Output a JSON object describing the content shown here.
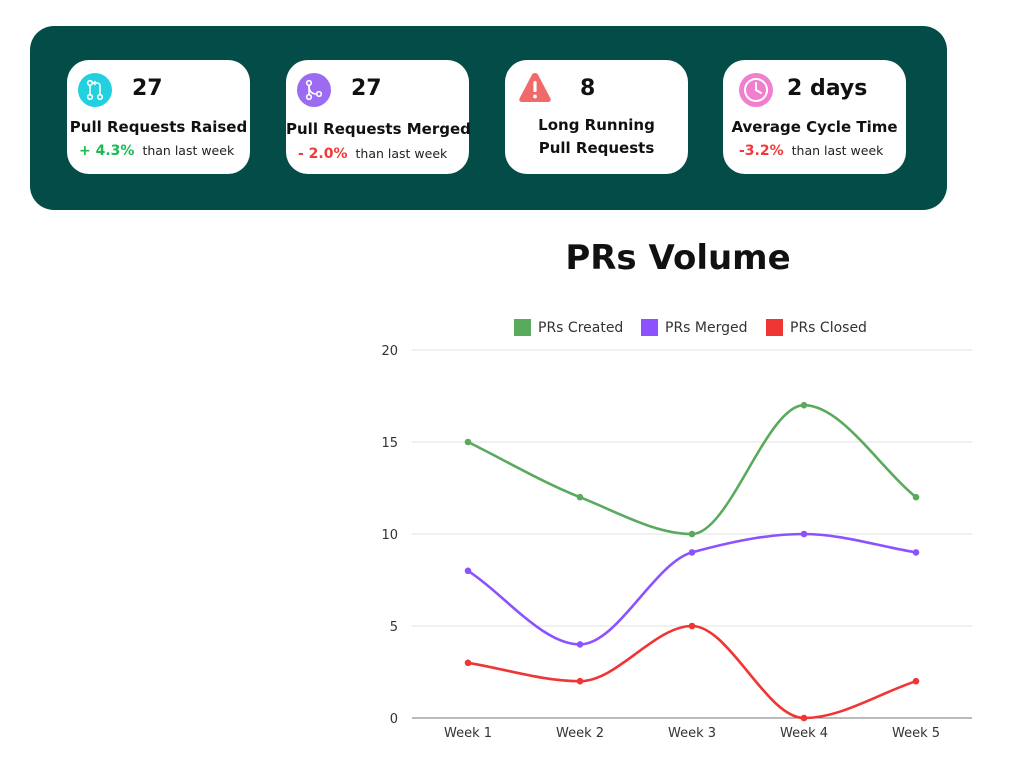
{
  "stats": [
    {
      "value": "27",
      "label": "Pull Requests Raised",
      "change": "+ 4.3%",
      "direction": "up",
      "suffix": "than last week",
      "icon": "pull-request-icon",
      "icon_color": "#22d0df"
    },
    {
      "value": "27",
      "label": "Pull Requests Merged",
      "change": "- 2.0%",
      "direction": "down",
      "suffix": "than last week",
      "icon": "merge-icon",
      "icon_color": "#9b6bf2"
    },
    {
      "value": "8",
      "label_line1": "Long Running",
      "label_line2": "Pull Requests",
      "icon": "warning-icon",
      "icon_color": "#f06a6a"
    },
    {
      "value": "2 days",
      "label": "Average Cycle Time",
      "change": "-3.2%",
      "direction": "down",
      "suffix": "than last week",
      "icon": "clock-icon",
      "icon_color": "#f07fd0"
    }
  ],
  "colors": {
    "panel_bg": "#034c48",
    "up": "#1db954",
    "down": "#f03a3a"
  },
  "chart_data": {
    "type": "line",
    "title": "PRs Volume",
    "categories": [
      "Week 1",
      "Week 2",
      "Week 3",
      "Week 4",
      "Week 5"
    ],
    "series": [
      {
        "name": "PRs Created",
        "color": "#5aaa5e",
        "values": [
          15,
          12,
          10,
          17,
          12
        ]
      },
      {
        "name": "PRs Merged",
        "color": "#8c52ff",
        "values": [
          8,
          4,
          9,
          10,
          9
        ]
      },
      {
        "name": "PRs Closed",
        "color": "#f03535",
        "values": [
          3,
          2,
          5,
          0,
          2
        ]
      }
    ],
    "ylim": [
      0,
      20
    ],
    "yticks": [
      0,
      5,
      10,
      15,
      20
    ],
    "grid": true,
    "legend": "top"
  }
}
